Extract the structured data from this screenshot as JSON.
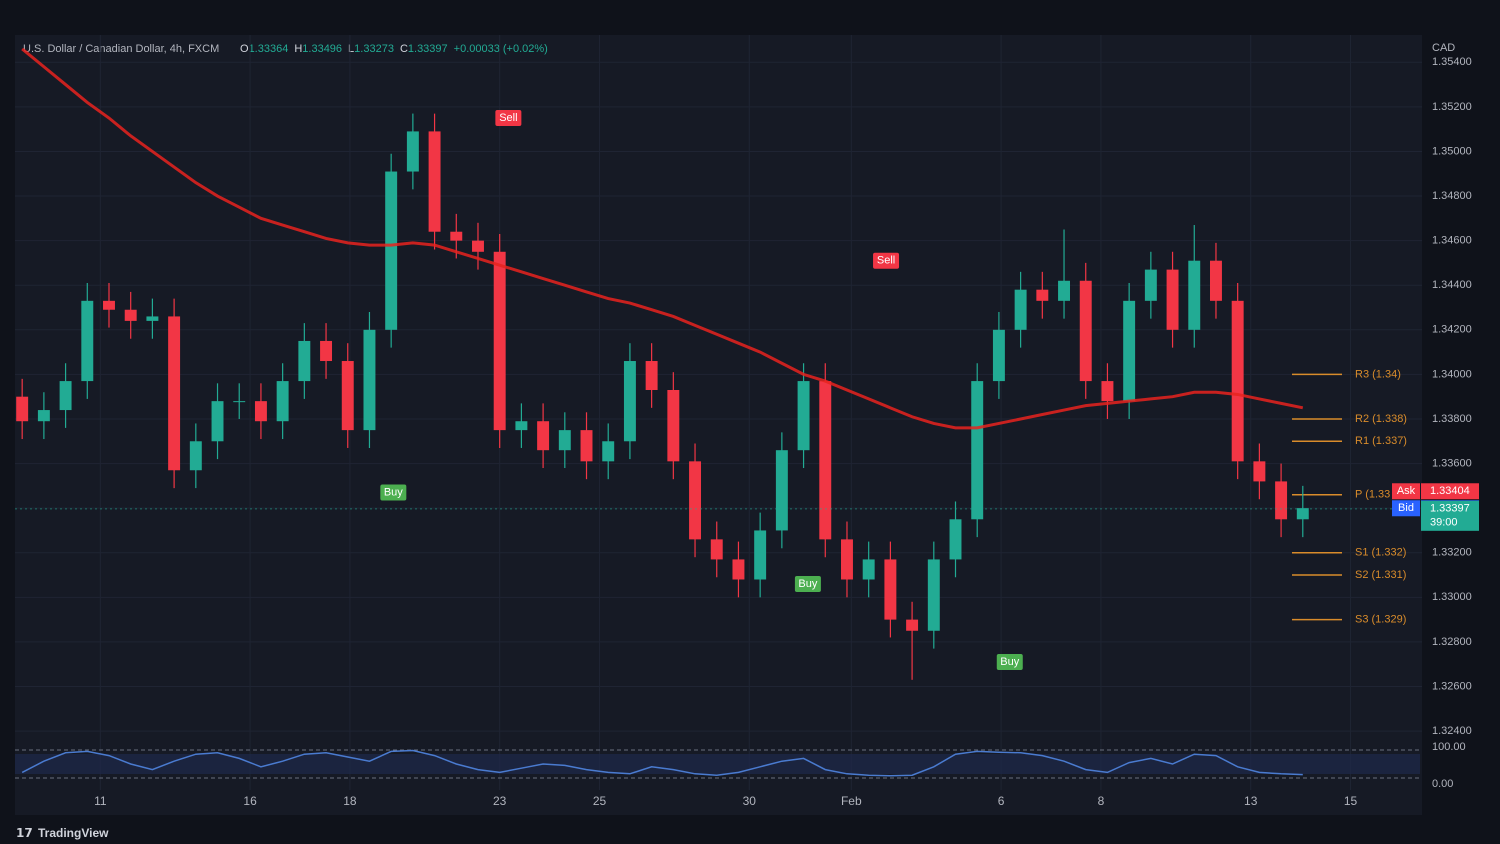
{
  "chart_data": {
    "type": "candlestick",
    "title": "U.S. Dollar / Canadian Dollar, 4h, FXCM",
    "ohlc_header": [
      {
        "key": "O",
        "text": "1.33364"
      },
      {
        "key": "H",
        "text": "1.33496"
      },
      {
        "key": "L",
        "text": "1.33273"
      },
      {
        "key": "C",
        "text": "1.33397"
      }
    ],
    "change": "+0.00033 (+0.02%)",
    "currency": "CAD",
    "open": [
      1.339,
      1.3379,
      1.3384,
      1.3397,
      1.3433,
      1.3429,
      1.3424,
      1.3426,
      1.3357,
      1.337,
      1.3388,
      1.3388,
      1.3379,
      1.3397,
      1.3415,
      1.3406,
      1.3375,
      1.342,
      1.3491,
      1.3509,
      1.3464,
      1.346,
      1.3455,
      1.3375,
      1.3379,
      1.3366,
      1.3375,
      1.3361,
      1.337,
      1.3406,
      1.3393,
      1.3361,
      1.3326,
      1.3317,
      1.3308,
      1.333,
      1.3366,
      1.3397,
      1.3326,
      1.3308,
      1.3317,
      1.329,
      1.3285,
      1.3317,
      1.3335,
      1.3397,
      1.342,
      1.3438,
      1.3433,
      1.3442,
      1.3397,
      1.3388,
      1.3433,
      1.3447,
      1.342,
      1.3451,
      1.3433,
      1.3361,
      1.3352,
      1.3335
    ],
    "high": [
      1.3398,
      1.3392,
      1.3405,
      1.3441,
      1.3441,
      1.3437,
      1.3434,
      1.3434,
      1.3378,
      1.3396,
      1.3396,
      1.3396,
      1.3405,
      1.3423,
      1.3423,
      1.3414,
      1.3428,
      1.3499,
      1.3517,
      1.3517,
      1.3472,
      1.3468,
      1.3463,
      1.3387,
      1.3387,
      1.3383,
      1.3383,
      1.3378,
      1.3414,
      1.3414,
      1.3401,
      1.3369,
      1.3334,
      1.3325,
      1.3338,
      1.3374,
      1.3405,
      1.3405,
      1.3334,
      1.3325,
      1.3325,
      1.3298,
      1.3325,
      1.3343,
      1.3405,
      1.3428,
      1.3446,
      1.3446,
      1.3465,
      1.345,
      1.3405,
      1.3441,
      1.3455,
      1.3455,
      1.3467,
      1.3459,
      1.3441,
      1.3369,
      1.336,
      1.335
    ],
    "low": [
      1.3371,
      1.3371,
      1.3376,
      1.3389,
      1.3421,
      1.3416,
      1.3416,
      1.3349,
      1.3349,
      1.3362,
      1.338,
      1.3371,
      1.3371,
      1.3389,
      1.3398,
      1.3367,
      1.3367,
      1.3412,
      1.3483,
      1.3456,
      1.3452,
      1.3447,
      1.3367,
      1.3367,
      1.3358,
      1.3358,
      1.3353,
      1.3353,
      1.3362,
      1.3385,
      1.3353,
      1.3318,
      1.3309,
      1.33,
      1.33,
      1.3322,
      1.3358,
      1.3318,
      1.33,
      1.33,
      1.3282,
      1.3263,
      1.3277,
      1.3309,
      1.3327,
      1.3389,
      1.3412,
      1.3425,
      1.3425,
      1.3389,
      1.338,
      1.338,
      1.3425,
      1.3412,
      1.3412,
      1.3425,
      1.3353,
      1.3344,
      1.3327,
      1.3327
    ],
    "close": [
      1.3379,
      1.3384,
      1.3397,
      1.3433,
      1.3429,
      1.3424,
      1.3426,
      1.3357,
      1.337,
      1.3388,
      1.3388,
      1.3379,
      1.3397,
      1.3415,
      1.3406,
      1.3375,
      1.342,
      1.3491,
      1.3509,
      1.3464,
      1.346,
      1.3455,
      1.3375,
      1.3379,
      1.3366,
      1.3375,
      1.3361,
      1.337,
      1.3406,
      1.3393,
      1.3361,
      1.3326,
      1.3317,
      1.3308,
      1.333,
      1.3366,
      1.3397,
      1.3326,
      1.3308,
      1.3317,
      1.329,
      1.3285,
      1.3317,
      1.3335,
      1.3397,
      1.342,
      1.3438,
      1.3433,
      1.3442,
      1.3397,
      1.3388,
      1.3433,
      1.3447,
      1.342,
      1.3451,
      1.3433,
      1.3361,
      1.3352,
      1.3335,
      1.334
    ],
    "up_color": "#22ab94",
    "down_color": "#f23645",
    "moving_average": {
      "color": "#e8231f",
      "values": [
        1.3546,
        1.3538,
        1.353,
        1.3522,
        1.3515,
        1.3507,
        1.35,
        1.3493,
        1.3486,
        1.348,
        1.3475,
        1.347,
        1.3467,
        1.3464,
        1.3461,
        1.3459,
        1.3458,
        1.3458,
        1.3459,
        1.3458,
        1.3455,
        1.3452,
        1.3449,
        1.3446,
        1.3443,
        1.344,
        1.3437,
        1.3434,
        1.3432,
        1.3429,
        1.3426,
        1.3422,
        1.3418,
        1.3414,
        1.341,
        1.3405,
        1.34,
        1.3397,
        1.3393,
        1.3389,
        1.3385,
        1.3381,
        1.3378,
        1.3376,
        1.3376,
        1.3378,
        1.338,
        1.3382,
        1.3384,
        1.3386,
        1.3387,
        1.3388,
        1.3389,
        1.339,
        1.3392,
        1.3392,
        1.3391,
        1.3389,
        1.3387,
        1.3385
      ]
    },
    "xlim": [
      -0.1,
      64.4
    ],
    "xticks": [
      {
        "value": 3.6,
        "label": "11"
      },
      {
        "value": 10.5,
        "label": "16"
      },
      {
        "value": 15.1,
        "label": "18"
      },
      {
        "value": 22.0,
        "label": "23"
      },
      {
        "value": 26.6,
        "label": "25"
      },
      {
        "value": 33.5,
        "label": "30"
      },
      {
        "value": 38.2,
        "label": "Feb"
      },
      {
        "value": 45.1,
        "label": "6"
      },
      {
        "value": 49.7,
        "label": "8"
      },
      {
        "value": 56.6,
        "label": "13"
      },
      {
        "value": 61.2,
        "label": "15"
      }
    ],
    "ylim": [
      1.3236,
      1.355
    ],
    "yticks": [
      {
        "value": 1.324,
        "label": "1.32400"
      },
      {
        "value": 1.326,
        "label": "1.32600"
      },
      {
        "value": 1.328,
        "label": "1.32800"
      },
      {
        "value": 1.33,
        "label": "1.33000"
      },
      {
        "value": 1.332,
        "label": "1.33200"
      },
      {
        "value": 1.334,
        "label": "1.33400"
      },
      {
        "value": 1.336,
        "label": "1.33600"
      },
      {
        "value": 1.338,
        "label": "1.33800"
      },
      {
        "value": 1.34,
        "label": "1.34000"
      },
      {
        "value": 1.342,
        "label": "1.34200"
      },
      {
        "value": 1.344,
        "label": "1.34400"
      },
      {
        "value": 1.346,
        "label": "1.34600"
      },
      {
        "value": 1.348,
        "label": "1.34800"
      },
      {
        "value": 1.35,
        "label": "1.35000"
      },
      {
        "value": 1.352,
        "label": "1.35200"
      },
      {
        "value": 1.354,
        "label": "1.35400"
      }
    ],
    "grid": true,
    "pivots": [
      {
        "value": 1.34,
        "label": "R3 (1.34)"
      },
      {
        "value": 1.338,
        "label": "R2 (1.338)"
      },
      {
        "value": 1.337,
        "label": "R1 (1.337)"
      },
      {
        "value": 1.3346,
        "label": "P (1.33"
      },
      {
        "value": 1.332,
        "label": "S1 (1.332)"
      },
      {
        "value": 1.331,
        "label": "S2 (1.331)"
      },
      {
        "value": 1.329,
        "label": "S3 (1.329)"
      }
    ],
    "pivot_color": "#d98c2b",
    "ask": {
      "label": "Ask",
      "value": 1.33404,
      "value_label": "1.33404"
    },
    "bid": {
      "label": "Bid",
      "value": 1.33397,
      "value_label": "1.33397"
    },
    "last": {
      "value": 1.33397,
      "value_label": "1.33397",
      "countdown": "39:00"
    },
    "signals": [
      "Sell",
      "Sell",
      "Buy",
      "Buy",
      "Buy"
    ],
    "oscillator": {
      "color": "#4a7bd0",
      "values": [
        20,
        60,
        90,
        95,
        80,
        50,
        30,
        60,
        85,
        90,
        70,
        40,
        60,
        85,
        90,
        75,
        60,
        95,
        98,
        80,
        50,
        30,
        20,
        35,
        50,
        45,
        30,
        20,
        15,
        40,
        30,
        15,
        10,
        20,
        40,
        60,
        70,
        30,
        15,
        10,
        8,
        10,
        40,
        85,
        95,
        92,
        90,
        80,
        60,
        30,
        20,
        55,
        70,
        50,
        85,
        80,
        40,
        20,
        15,
        12
      ],
      "ylim": [
        0,
        100
      ],
      "yticks": [
        {
          "value": 100,
          "label": "100.00"
        },
        {
          "value": 0,
          "label": "0.00"
        }
      ]
    },
    "brand": "TradingView"
  }
}
